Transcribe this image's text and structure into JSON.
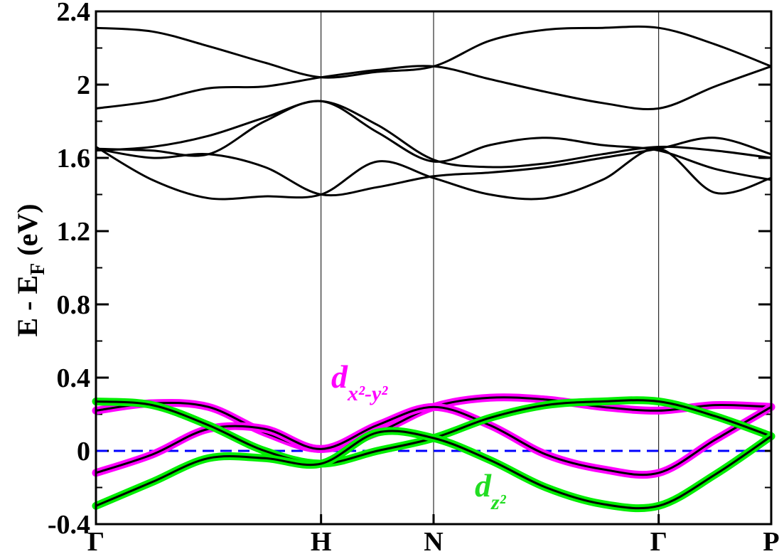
{
  "chart_data": {
    "type": "line",
    "ylabel": {
      "main": "E - E",
      "sub": "F",
      "unit": "(eV)"
    },
    "ylim": [
      -0.4,
      2.4
    ],
    "yticks": [
      "-0.4",
      "0",
      "0.4",
      "0.8",
      "1.2",
      "1.6",
      "2",
      "2.4"
    ],
    "ytick_values": [
      -0.4,
      0,
      0.4,
      0.8,
      1.2,
      1.6,
      2.0,
      2.4
    ],
    "kpoints": [
      "Γ",
      "H",
      "N",
      "Γ",
      "P"
    ],
    "kpoint_positions": [
      0,
      1,
      1.5,
      2.5,
      3.0
    ],
    "fermi_level": 0,
    "colors": {
      "bands": "#000000",
      "dx2y2": "#ff00ff",
      "dz2": "#00ee00",
      "fermi": "#0000ff"
    },
    "orbital_labels": {
      "dx2y2": {
        "base": "d",
        "sub": "x²-y²"
      },
      "dz2": {
        "base": "d",
        "sub": "z²"
      }
    },
    "series": [
      {
        "group": "conduction",
        "x": [
          0,
          0.25,
          0.5,
          0.75,
          1,
          1.25,
          1.5,
          1.75,
          2,
          2.25,
          2.5,
          2.75,
          3
        ],
        "y": [
          2.31,
          2.29,
          2.21,
          2.12,
          2.04,
          2.07,
          2.1,
          2.24,
          2.3,
          2.31,
          2.31,
          2.22,
          2.1
        ]
      },
      {
        "group": "conduction",
        "x": [
          0,
          0.25,
          0.5,
          0.75,
          1,
          1.25,
          1.5,
          1.75,
          2,
          2.25,
          2.5,
          2.75,
          3
        ],
        "y": [
          1.87,
          1.91,
          1.98,
          1.99,
          2.04,
          2.08,
          2.1,
          2.03,
          1.96,
          1.9,
          1.87,
          1.99,
          2.1
        ]
      },
      {
        "group": "conduction",
        "x": [
          0,
          0.25,
          0.5,
          0.75,
          1,
          1.25,
          1.5,
          1.75,
          2,
          2.25,
          2.5,
          2.75,
          3
        ],
        "y": [
          1.64,
          1.66,
          1.72,
          1.82,
          1.91,
          1.78,
          1.59,
          1.55,
          1.57,
          1.62,
          1.66,
          1.64,
          1.6
        ]
      },
      {
        "group": "conduction",
        "x": [
          0,
          0.25,
          0.5,
          0.75,
          1,
          1.25,
          1.5,
          1.75,
          2,
          2.25,
          2.5,
          2.75,
          3
        ],
        "y": [
          1.65,
          1.64,
          1.62,
          1.8,
          1.91,
          1.74,
          1.58,
          1.67,
          1.71,
          1.67,
          1.64,
          1.54,
          1.48
        ]
      },
      {
        "group": "conduction",
        "x": [
          0,
          0.25,
          0.5,
          0.75,
          1,
          1.25,
          1.5,
          1.75,
          2,
          2.25,
          2.5,
          2.75,
          3
        ],
        "y": [
          1.65,
          1.6,
          1.62,
          1.55,
          1.4,
          1.44,
          1.5,
          1.52,
          1.55,
          1.6,
          1.65,
          1.71,
          1.62
        ]
      },
      {
        "group": "conduction",
        "x": [
          0,
          0.25,
          0.5,
          0.75,
          1,
          1.25,
          1.5,
          1.75,
          2,
          2.25,
          2.5,
          2.75,
          3
        ],
        "y": [
          1.66,
          1.48,
          1.38,
          1.39,
          1.4,
          1.58,
          1.49,
          1.4,
          1.38,
          1.48,
          1.65,
          1.41,
          1.49
        ]
      },
      {
        "group": "dx2y2",
        "x": [
          0,
          0.25,
          0.5,
          0.75,
          1,
          1.25,
          1.5,
          1.75,
          2,
          2.25,
          2.5,
          2.75,
          3
        ],
        "y": [
          0.22,
          0.26,
          0.24,
          0.1,
          0.01,
          0.1,
          0.24,
          0.29,
          0.28,
          0.24,
          0.22,
          0.25,
          0.24
        ]
      },
      {
        "group": "dx2y2",
        "x": [
          0,
          0.25,
          0.5,
          0.75,
          1,
          1.25,
          1.5,
          1.75,
          2,
          2.25,
          2.5,
          2.75,
          3
        ],
        "y": [
          -0.12,
          -0.02,
          0.12,
          0.12,
          0.01,
          0.14,
          0.24,
          0.14,
          -0.02,
          -0.1,
          -0.12,
          0.06,
          0.24
        ]
      },
      {
        "group": "dz2",
        "x": [
          0,
          0.25,
          0.5,
          0.75,
          1,
          1.25,
          1.5,
          1.75,
          2,
          2.25,
          2.5,
          2.75,
          3
        ],
        "y": [
          0.27,
          0.25,
          0.14,
          0.0,
          -0.07,
          0.0,
          0.07,
          0.18,
          0.25,
          0.27,
          0.27,
          0.19,
          0.08
        ]
      },
      {
        "group": "dz2",
        "x": [
          0,
          0.25,
          0.5,
          0.75,
          1,
          1.25,
          1.5,
          1.75,
          2,
          2.25,
          2.5,
          2.75,
          3
        ],
        "y": [
          -0.3,
          -0.17,
          -0.04,
          -0.04,
          -0.07,
          0.1,
          0.07,
          -0.05,
          -0.2,
          -0.29,
          -0.3,
          -0.13,
          0.08
        ]
      }
    ]
  }
}
